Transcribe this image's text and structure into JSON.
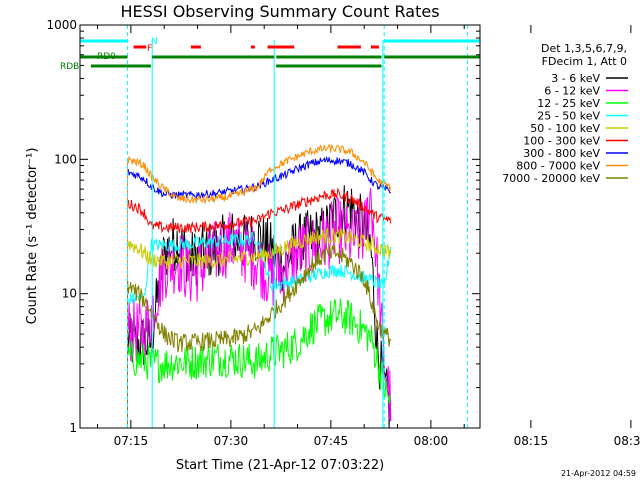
{
  "chart_data": {
    "type": "line",
    "title": "HESSI Observing Summary Count Rates",
    "xlabel": "Start Time (21-Apr-12 07:03:22)",
    "ylabel": "Count Rate (s⁻¹ detector⁻¹)",
    "yscale": "log",
    "ylim": [
      1,
      1000
    ],
    "xlim_minutes": [
      427.37,
      487.37
    ],
    "x_ticks": [
      "07:15",
      "07:30",
      "07:45",
      "08:00",
      "08:15",
      "08:30"
    ],
    "y_ticks": [
      "1",
      "10",
      "100",
      "1000"
    ],
    "footer": "21-Apr-2012 04:59",
    "legend": {
      "placement": "right",
      "header_line1": "Det 1,3,5,6,7,9,",
      "header_line2": "FDecim 1, Att 0"
    },
    "flags": [
      {
        "name": "N",
        "color": "#00ffff"
      },
      {
        "name": "F",
        "color": "#ff0000"
      },
      {
        "name": "RD0",
        "color": "#008000"
      },
      {
        "name": "RDB",
        "color": "#008000"
      }
    ],
    "series": [
      {
        "name": "3 - 6 keV",
        "color": "#000000",
        "x": [
          434.5,
          435,
          436,
          437,
          438,
          440,
          442,
          444,
          446,
          448,
          450,
          452,
          454,
          456,
          458,
          460,
          462,
          464,
          466,
          468,
          470,
          471,
          472,
          473,
          474
        ],
        "y": [
          4.5,
          4.3,
          4.2,
          4.4,
          4.3,
          20,
          25,
          18,
          20,
          22,
          26,
          24,
          27,
          21,
          16,
          24,
          26,
          28,
          40,
          45,
          30,
          22,
          4,
          2,
          1.3
        ]
      },
      {
        "name": "6 - 12 keV",
        "color": "#ff00ff",
        "x": [
          434.5,
          436,
          437,
          438,
          440,
          442,
          444,
          446,
          448,
          450,
          452,
          454,
          456,
          458,
          460,
          462,
          464,
          466,
          468,
          470,
          471,
          472,
          473,
          474
        ],
        "y": [
          5.5,
          5.2,
          5,
          7,
          16,
          18,
          14,
          16,
          21,
          24,
          21,
          18,
          13,
          15,
          20,
          22,
          25,
          30,
          25,
          28,
          55,
          15,
          3,
          1.5
        ]
      },
      {
        "name": "12 - 25 keV",
        "color": "#00ff00",
        "x": [
          434.5,
          436,
          437,
          438,
          440,
          442,
          444,
          446,
          448,
          450,
          452,
          454,
          456,
          458,
          460,
          462,
          464,
          466,
          468,
          470,
          471,
          472,
          473,
          474
        ],
        "y": [
          3.4,
          3.2,
          3.2,
          3,
          3,
          3.1,
          3.1,
          3.2,
          3.3,
          3.3,
          3.2,
          3.1,
          3.6,
          3.8,
          4.3,
          5.6,
          6.4,
          6.9,
          6.5,
          5.3,
          4.6,
          3.2,
          2,
          1.5
        ]
      },
      {
        "name": "25 - 50 keV",
        "color": "#00ffff",
        "x": [
          434.5,
          436,
          437,
          438,
          440,
          442,
          444,
          446,
          448,
          450,
          452,
          454,
          456,
          458,
          460,
          462,
          464,
          466,
          468,
          470,
          471,
          472,
          473,
          474
        ],
        "y": [
          9,
          9.4,
          9.2,
          23,
          23,
          23,
          23.5,
          24,
          24.5,
          25,
          25,
          26,
          11.5,
          12,
          12.5,
          13.5,
          14.5,
          15,
          14.3,
          13,
          12.5,
          12,
          11,
          23
        ]
      },
      {
        "name": "50 - 100 keV",
        "color": "#cccc00",
        "x": [
          434.5,
          436,
          437,
          438,
          440,
          442,
          444,
          446,
          448,
          450,
          452,
          454,
          456,
          458,
          460,
          462,
          464,
          466,
          468,
          470,
          471,
          472,
          473,
          474
        ],
        "y": [
          24,
          22,
          20,
          18,
          17.5,
          17.5,
          17.5,
          17.5,
          17.7,
          18,
          18.5,
          19,
          20,
          22,
          24,
          26,
          27,
          27,
          26,
          24,
          23,
          22,
          21,
          20
        ]
      },
      {
        "name": "100 - 300 keV",
        "color": "#ff0000",
        "x": [
          434.5,
          436,
          437,
          438,
          440,
          442,
          444,
          446,
          448,
          450,
          452,
          454,
          456,
          458,
          460,
          462,
          464,
          466,
          468,
          470,
          471,
          472,
          473,
          474
        ],
        "y": [
          47,
          44,
          40,
          32,
          31,
          31,
          31,
          31.5,
          32,
          33,
          34,
          35,
          40,
          42,
          46,
          50,
          54,
          55,
          51,
          44,
          40,
          37,
          36,
          35
        ]
      },
      {
        "name": "300 - 800 keV",
        "color": "#0000ff",
        "x": [
          434.5,
          436,
          437,
          438,
          440,
          442,
          444,
          446,
          448,
          450,
          452,
          454,
          456,
          458,
          460,
          462,
          464,
          466,
          468,
          470,
          471,
          472,
          473,
          474
        ],
        "y": [
          80,
          76,
          72,
          63,
          55,
          54,
          54,
          55,
          56,
          58,
          60,
          63,
          70,
          76,
          85,
          93,
          98,
          98,
          93,
          80,
          70,
          63,
          60,
          58
        ]
      },
      {
        "name": "800 - 7000 keV",
        "color": "#ff8c00",
        "x": [
          434.5,
          436,
          437,
          438,
          440,
          442,
          444,
          446,
          448,
          450,
          452,
          454,
          456,
          458,
          460,
          462,
          464,
          466,
          468,
          470,
          471,
          472,
          473,
          474
        ],
        "y": [
          100,
          95,
          90,
          75,
          60,
          51,
          50,
          50,
          51,
          53,
          57,
          62,
          85,
          95,
          105,
          115,
          120,
          120,
          113,
          95,
          82,
          70,
          65,
          62
        ]
      },
      {
        "name": "7000 - 20000 keV",
        "color": "#808000",
        "x": [
          434.5,
          436,
          437,
          438,
          440,
          442,
          444,
          446,
          448,
          450,
          452,
          454,
          456,
          458,
          460,
          462,
          464,
          466,
          468,
          470,
          471,
          472,
          473,
          474
        ],
        "y": [
          11.5,
          10,
          9,
          7.5,
          5,
          4.3,
          4.3,
          4.4,
          4.5,
          4.6,
          4.9,
          5.4,
          7,
          9,
          12,
          16,
          19.5,
          20,
          17,
          13,
          9,
          6,
          5,
          4.6
        ]
      }
    ]
  }
}
